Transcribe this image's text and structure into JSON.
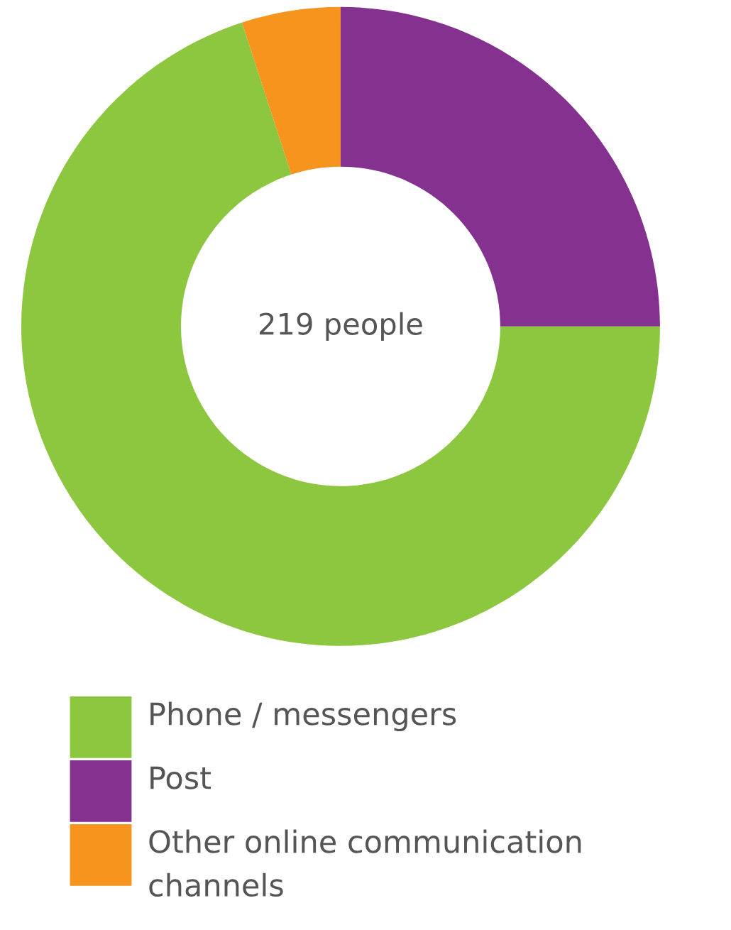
{
  "chart_data": {
    "type": "donut",
    "categories": [
      "Phone / messengers",
      "Post",
      "Other online communication channels"
    ],
    "values": [
      70,
      25,
      5
    ],
    "colors": [
      "#8dc63f",
      "#84318f",
      "#f7941d"
    ],
    "annotations": [
      "219 people"
    ],
    "legend": "bottom"
  }
}
